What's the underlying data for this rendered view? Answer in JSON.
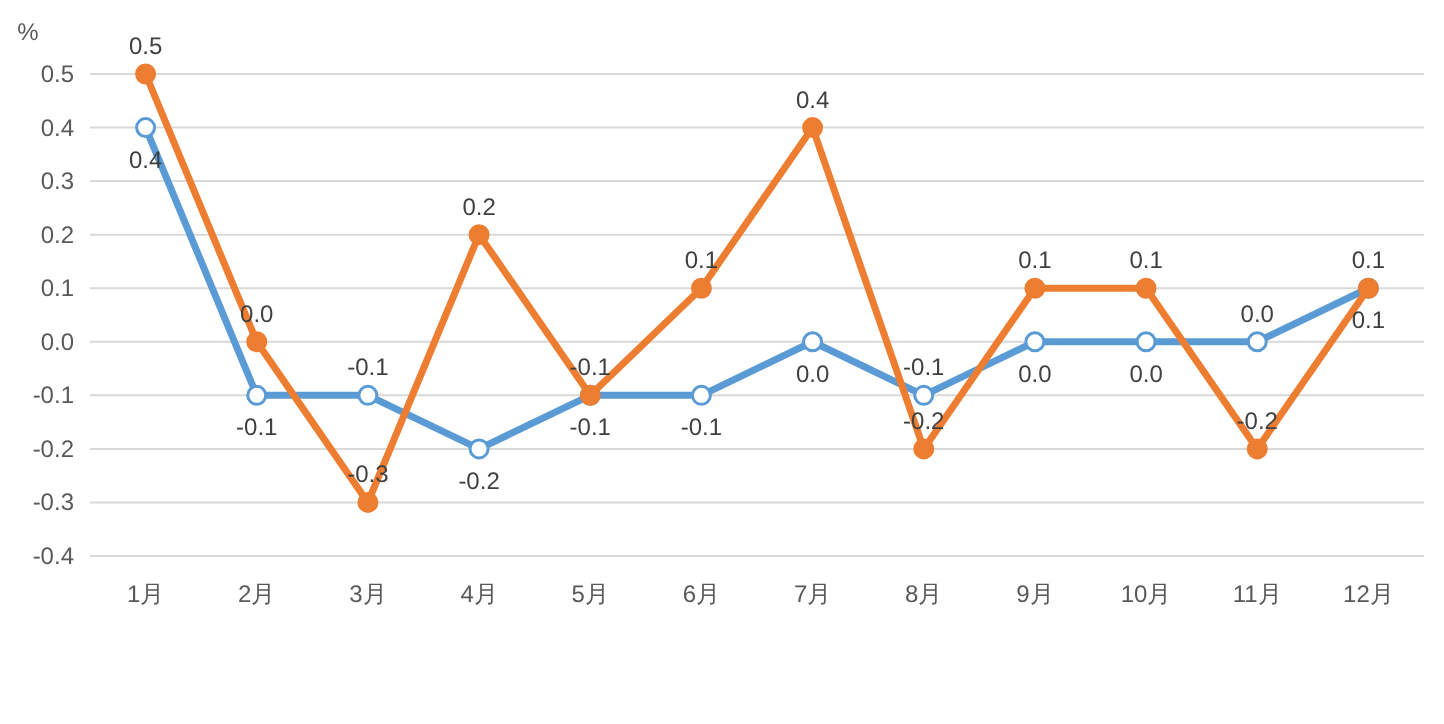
{
  "chart_data": {
    "type": "line",
    "ylabel": "%",
    "categories": [
      "1月",
      "2月",
      "3月",
      "4月",
      "5月",
      "6月",
      "7月",
      "8月",
      "9月",
      "10月",
      "11月",
      "12月"
    ],
    "series": [
      {
        "color": "#5b9bd5",
        "values": [
          0.4,
          -0.1,
          -0.1,
          -0.2,
          -0.1,
          -0.1,
          0.0,
          -0.1,
          0.0,
          0.0,
          0.0,
          0.1
        ],
        "value_labels": [
          "0.4",
          "-0.1",
          "-0.1",
          "-0.2",
          "-0.1",
          "-0.1",
          "0.0",
          "-0.1",
          "0.0",
          "0.0",
          "0.0",
          "0.1"
        ]
      },
      {
        "color": "#ed7d31",
        "values": [
          0.5,
          0.0,
          -0.3,
          0.2,
          -0.1,
          0.1,
          0.4,
          -0.2,
          0.1,
          0.1,
          -0.2,
          0.1
        ],
        "value_labels": [
          "0.5",
          "0.0",
          "-0.3",
          "0.2",
          "-0.1",
          "0.1",
          "0.4",
          "-0.2",
          "0.1",
          "0.1",
          "-0.2",
          "0.1"
        ]
      }
    ],
    "ylim": [
      -0.4,
      0.5
    ],
    "yticks": [
      -0.4,
      -0.3,
      -0.2,
      -0.1,
      {
        "value": 0,
        "label": "0.0"
      },
      0.1,
      0.2,
      0.3,
      0.4,
      0.5
    ],
    "grid": "y",
    "marker": "circle",
    "line_style": "solid"
  }
}
